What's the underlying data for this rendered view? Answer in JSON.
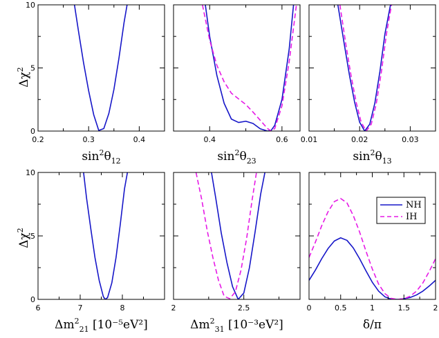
{
  "colors": {
    "NH": "#1515c8",
    "IH": "#e619e6",
    "axis": "#000000"
  },
  "legend": {
    "placement": "top-right of panel 6",
    "entries": [
      {
        "label": "NH",
        "style": "solid"
      },
      {
        "label": "IH",
        "style": "dashed"
      }
    ]
  },
  "ylabel": "Δχ",
  "ylabel_sup": "2",
  "chart_data": [
    {
      "type": "line",
      "panel": 1,
      "xlabel": {
        "base": "sin",
        "sup": "2",
        "sym": "θ",
        "sub": "12",
        "tail": ""
      },
      "xlim": [
        0.2,
        0.45
      ],
      "ylim": [
        0,
        10
      ],
      "xticks": [
        0.2,
        0.3,
        0.4
      ],
      "xtick_labels": [
        "0.2",
        "0.3",
        "0.4"
      ],
      "yticks": [
        0,
        5,
        10
      ],
      "ytick_labels": [
        "0",
        "5",
        "10"
      ],
      "series": [
        {
          "name": "NH",
          "style": "solid",
          "x": [
            0.272,
            0.28,
            0.29,
            0.3,
            0.31,
            0.32,
            0.33,
            0.34,
            0.35,
            0.36,
            0.37,
            0.376
          ],
          "y": [
            10,
            7.9,
            5.4,
            3.2,
            1.3,
            0.05,
            0.2,
            1.4,
            3.3,
            5.8,
            8.6,
            10
          ]
        }
      ]
    },
    {
      "type": "line",
      "panel": 2,
      "xlabel": {
        "base": "sin",
        "sup": "2",
        "sym": "θ",
        "sub": "23",
        "tail": ""
      },
      "xlim": [
        0.3,
        0.65
      ],
      "ylim": [
        0,
        10
      ],
      "xticks": [
        0.4,
        0.6
      ],
      "xtick_labels": [
        "0.4",
        "0.6"
      ],
      "yticks": [
        0,
        5,
        10
      ],
      "ytick_labels": [
        "",
        "",
        ""
      ],
      "series": [
        {
          "name": "NH",
          "style": "solid",
          "x": [
            0.388,
            0.4,
            0.42,
            0.44,
            0.46,
            0.48,
            0.5,
            0.52,
            0.54,
            0.56,
            0.57,
            0.58,
            0.6,
            0.62,
            0.632
          ],
          "y": [
            10,
            7.5,
            4.4,
            2.2,
            0.95,
            0.68,
            0.78,
            0.6,
            0.18,
            0.0,
            0.05,
            0.45,
            2.5,
            6.5,
            10
          ]
        },
        {
          "name": "IH",
          "style": "dashed",
          "x": [
            0.38,
            0.4,
            0.42,
            0.44,
            0.46,
            0.48,
            0.5,
            0.52,
            0.54,
            0.56,
            0.57,
            0.58,
            0.6,
            0.62,
            0.64
          ],
          "y": [
            10,
            7.2,
            5.2,
            3.9,
            3.0,
            2.55,
            2.1,
            1.5,
            0.85,
            0.2,
            0.0,
            0.2,
            2.0,
            5.5,
            10
          ]
        }
      ]
    },
    {
      "type": "line",
      "panel": 3,
      "xlabel": {
        "base": "sin",
        "sup": "2",
        "sym": "θ",
        "sub": "13",
        "tail": ""
      },
      "xlim": [
        0.01,
        0.035
      ],
      "ylim": [
        0,
        10
      ],
      "xticks": [
        0.01,
        0.02,
        0.03
      ],
      "xtick_labels": [
        "0.01",
        "0.02",
        "0.03"
      ],
      "yticks": [
        0,
        5,
        10
      ],
      "ytick_labels": [
        "",
        "",
        ""
      ],
      "series": [
        {
          "name": "NH",
          "style": "solid",
          "x": [
            0.0157,
            0.017,
            0.018,
            0.019,
            0.02,
            0.021,
            0.022,
            0.023,
            0.024,
            0.025,
            0.0261
          ],
          "y": [
            10,
            6.8,
            4.4,
            2.3,
            0.7,
            0.0,
            0.55,
            2.2,
            4.7,
            7.7,
            10
          ]
        },
        {
          "name": "IH",
          "style": "dashed",
          "x": [
            0.0161,
            0.0173,
            0.0183,
            0.0193,
            0.0203,
            0.0213,
            0.0223,
            0.0233,
            0.0243,
            0.0253,
            0.0263
          ],
          "y": [
            10,
            6.8,
            4.4,
            2.3,
            0.7,
            0.0,
            0.55,
            2.2,
            4.7,
            7.7,
            10
          ]
        }
      ]
    },
    {
      "type": "line",
      "panel": 4,
      "xlabel": {
        "base": "Δm",
        "sup": "2",
        "sym": "",
        "sub": "21",
        "tail": " [10⁻⁵eV²]"
      },
      "xlim": [
        6.0,
        9.0
      ],
      "ylim": [
        0,
        10
      ],
      "xticks": [
        6,
        7,
        8
      ],
      "xtick_labels": [
        "6",
        "7",
        "8"
      ],
      "yticks": [
        0,
        5,
        10
      ],
      "ytick_labels": [
        "0",
        "5",
        "10"
      ],
      "series": [
        {
          "name": "NH",
          "style": "solid",
          "x": [
            7.08,
            7.15,
            7.25,
            7.35,
            7.45,
            7.55,
            7.6,
            7.65,
            7.75,
            7.85,
            7.95,
            8.05,
            8.12
          ],
          "y": [
            10,
            8.0,
            5.6,
            3.3,
            1.5,
            0.2,
            0.0,
            0.15,
            1.3,
            3.3,
            5.9,
            8.7,
            10
          ]
        }
      ]
    },
    {
      "type": "line",
      "panel": 5,
      "xlabel": {
        "base": "Δm",
        "sup": "2",
        "sym": "",
        "sub": "31",
        "tail": " [10⁻³eV²]"
      },
      "xlim": [
        2.0,
        2.9
      ],
      "ylim": [
        0,
        10
      ],
      "xticks": [
        2.0,
        2.5
      ],
      "xtick_labels": [
        "2",
        "2.5"
      ],
      "yticks": [
        0,
        5,
        10
      ],
      "ytick_labels": [
        "",
        "",
        ""
      ],
      "series": [
        {
          "name": "NH",
          "style": "solid",
          "x": [
            2.27,
            2.3,
            2.34,
            2.38,
            2.42,
            2.46,
            2.5,
            2.54,
            2.58,
            2.62,
            2.65
          ],
          "y": [
            10,
            8.0,
            5.2,
            2.9,
            1.0,
            0.0,
            0.5,
            2.5,
            5.3,
            8.3,
            10
          ]
        },
        {
          "name": "IH",
          "style": "dashed",
          "x": [
            2.16,
            2.2,
            2.24,
            2.28,
            2.32,
            2.36,
            2.4,
            2.44,
            2.48,
            2.52,
            2.56,
            2.59
          ],
          "y": [
            10,
            7.9,
            5.4,
            3.3,
            1.5,
            0.25,
            0.05,
            0.6,
            2.3,
            4.8,
            7.9,
            10
          ]
        }
      ]
    },
    {
      "type": "line",
      "panel": 6,
      "xlabel": {
        "base": "δ/π",
        "sup": "",
        "sym": "",
        "sub": "",
        "tail": ""
      },
      "xlim": [
        0,
        2
      ],
      "ylim": [
        0,
        10
      ],
      "xticks": [
        0,
        0.5,
        1,
        1.5,
        2
      ],
      "xtick_labels": [
        "0",
        "0.5",
        "1",
        "1.5",
        "2"
      ],
      "yticks": [
        0,
        5,
        10
      ],
      "ytick_labels": [
        "",
        "",
        ""
      ],
      "series": [
        {
          "name": "NH",
          "style": "solid",
          "x": [
            0,
            0.1,
            0.2,
            0.3,
            0.4,
            0.5,
            0.6,
            0.7,
            0.8,
            0.9,
            1.0,
            1.1,
            1.2,
            1.3,
            1.4,
            1.5,
            1.6,
            1.7,
            1.8,
            1.9,
            2.0
          ],
          "y": [
            1.5,
            2.3,
            3.2,
            4.0,
            4.6,
            4.85,
            4.65,
            4.05,
            3.2,
            2.25,
            1.35,
            0.65,
            0.2,
            0.02,
            0.0,
            0.05,
            0.15,
            0.35,
            0.65,
            1.05,
            1.5
          ]
        },
        {
          "name": "IH",
          "style": "dashed",
          "x": [
            0,
            0.1,
            0.2,
            0.3,
            0.4,
            0.5,
            0.6,
            0.7,
            0.8,
            0.9,
            1.0,
            1.1,
            1.2,
            1.3,
            1.4,
            1.5,
            1.6,
            1.7,
            1.8,
            1.9,
            2.0
          ],
          "y": [
            3.3,
            4.5,
            5.8,
            6.9,
            7.7,
            7.95,
            7.6,
            6.6,
            5.3,
            3.8,
            2.4,
            1.2,
            0.45,
            0.08,
            0.0,
            0.05,
            0.25,
            0.65,
            1.3,
            2.2,
            3.2
          ]
        }
      ]
    }
  ]
}
